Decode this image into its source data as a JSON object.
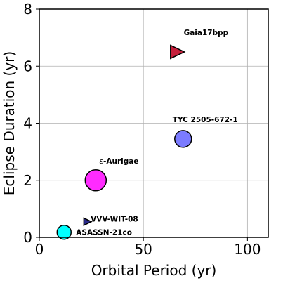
{
  "chart_data": {
    "type": "scatter",
    "xlabel": "Orbital Period (yr)",
    "ylabel": "Eclipse Duration (yr)",
    "xlim": [
      0,
      110
    ],
    "ylim": [
      0,
      8
    ],
    "x_ticks": [
      0,
      50,
      100
    ],
    "y_ticks": [
      0,
      2,
      4,
      6,
      8
    ],
    "grid": true,
    "points": [
      {
        "label": "Gaia17bpp",
        "x": 66,
        "y": 6.5,
        "marker": "triangle-right",
        "color": "#c41e3a"
      },
      {
        "label": "TYC 2505-672-1",
        "x": 69.1,
        "y": 3.45,
        "marker": "circle",
        "color": "#7b7bff"
      },
      {
        "label": "ε-Aurigae",
        "x": 27.1,
        "y": 2.0,
        "marker": "circle",
        "color": "#ff2bff"
      },
      {
        "label": "VVV-WIT-08",
        "x": 23,
        "y": 0.55,
        "marker": "triangle-right",
        "color": "#2a2a8c"
      },
      {
        "label": "ASASSN-21co",
        "x": 11.9,
        "y": 0.18,
        "marker": "circle",
        "color": "#00ffff"
      }
    ]
  }
}
